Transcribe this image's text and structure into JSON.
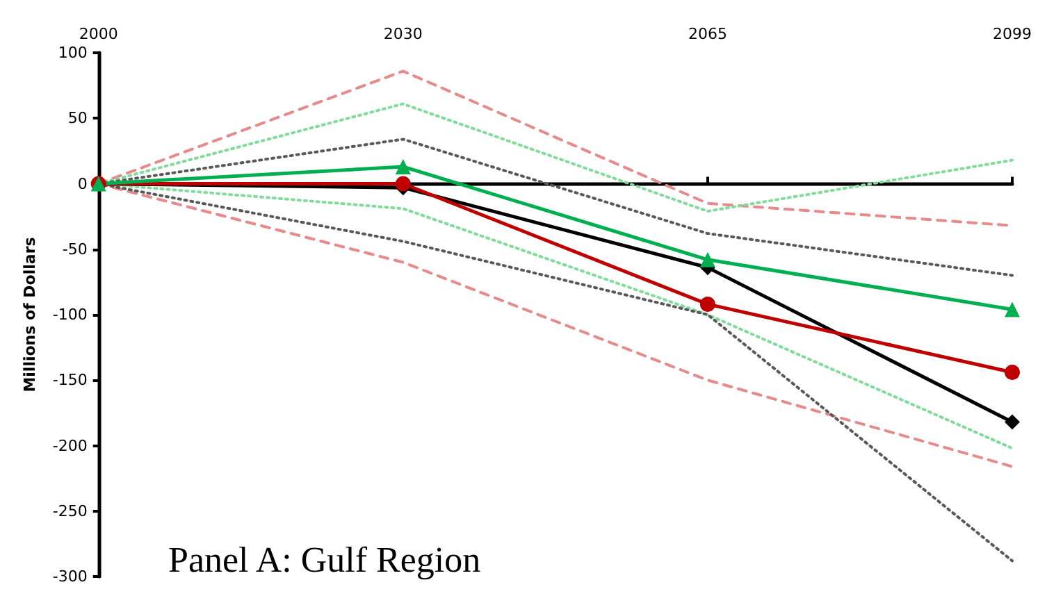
{
  "chart_data": {
    "type": "line",
    "title": "Panel A: Gulf Region",
    "ylabel": "Millions of Dollars",
    "categories": [
      "2000",
      "2030",
      "2065",
      "2099"
    ],
    "series": [
      {
        "color": "#e68a8a",
        "line_style": "dashed",
        "marker": "none",
        "values": [
          0,
          86,
          -15,
          -32
        ]
      },
      {
        "color": "#e68a8a",
        "line_style": "dashed",
        "marker": "none",
        "values": [
          0,
          -60,
          -150,
          -216
        ]
      },
      {
        "color": "#7fdc9a",
        "line_style": "dotted",
        "marker": "none",
        "values": [
          0,
          61,
          -21,
          18
        ]
      },
      {
        "color": "#7fdc9a",
        "line_style": "dotted",
        "marker": "none",
        "values": [
          0,
          -19,
          -100,
          -202
        ]
      },
      {
        "color": "#595959",
        "line_style": "dotted",
        "marker": "none",
        "values": [
          0,
          34,
          -38,
          -70
        ]
      },
      {
        "color": "#595959",
        "line_style": "dotted",
        "marker": "none",
        "values": [
          0,
          -44,
          -100,
          -288
        ]
      },
      {
        "color": "#000000",
        "line_style": "solid",
        "marker": "diamond",
        "values": [
          0,
          -3,
          -64,
          -182
        ]
      },
      {
        "color": "#c00000",
        "line_style": "solid",
        "marker": "circle",
        "values": [
          0,
          0,
          -92,
          -144
        ]
      },
      {
        "color": "#00b050",
        "line_style": "solid",
        "marker": "triangle",
        "values": [
          0,
          13,
          -58,
          -96
        ]
      }
    ],
    "ylim": [
      -300,
      100
    ],
    "yticks": [
      -300,
      -250,
      -200,
      -150,
      -100,
      -50,
      0,
      50,
      100
    ]
  }
}
